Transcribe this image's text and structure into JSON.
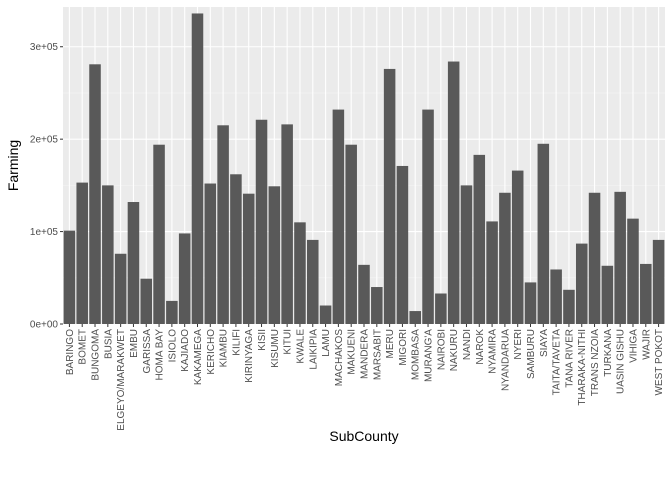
{
  "chart_data": {
    "type": "bar",
    "xlabel": "SubCounty",
    "ylabel": "Farming",
    "ylim": [
      0,
      343000
    ],
    "yticks": [
      0,
      100000,
      200000,
      300000
    ],
    "ytick_labels": [
      "0e+00",
      "1e+05",
      "2e+05",
      "3e+05"
    ],
    "grid": true,
    "categories": [
      "BARINGO",
      "BOMET",
      "BUNGOMA",
      "BUSIA",
      "ELGEYO/MARAKWET",
      "EMBU",
      "GARISSA",
      "HOMA BAY",
      "ISIOLO",
      "KAJIADO",
      "KAKAMEGA",
      "KERICHO",
      "KIAMBU",
      "KILIFI",
      "KIRINYAGA",
      "KISII",
      "KISUMU",
      "KITUI",
      "KWALE",
      "LAIKIPIA",
      "LAMU",
      "MACHAKOS",
      "MAKUENI",
      "MANDERA",
      "MARSABIT",
      "MERU",
      "MIGORI",
      "MOMBASA",
      "MURANG'A",
      "NAIROBI",
      "NAKURU",
      "NANDI",
      "NAROK",
      "NYAMIRA",
      "NYANDARUA",
      "NYERI",
      "SAMBURU",
      "SIAYA",
      "TAITA/TAVETA",
      "TANA RIVER",
      "THARAKA-NITHI",
      "TRANS NZOIA",
      "TURKANA",
      "UASIN GISHU",
      "VIHIGA",
      "WAJIR",
      "WEST POKOT"
    ],
    "values": [
      101000,
      153000,
      281000,
      150000,
      76000,
      132000,
      49000,
      194000,
      25000,
      98000,
      336000,
      152000,
      215000,
      162000,
      141000,
      221000,
      149000,
      216000,
      110000,
      91000,
      20000,
      232000,
      194000,
      64000,
      40000,
      276000,
      171000,
      14000,
      232000,
      33000,
      284000,
      150000,
      183000,
      111000,
      142000,
      166000,
      45000,
      195000,
      59000,
      37000,
      87000,
      142000,
      63000,
      143000,
      114000,
      65000,
      91000
    ],
    "colors": {
      "bar": "#595959",
      "panel": "#ebebeb",
      "grid_major": "#ffffff",
      "grid_minor": "#f5f5f5",
      "text": "#4d4d4d"
    }
  }
}
